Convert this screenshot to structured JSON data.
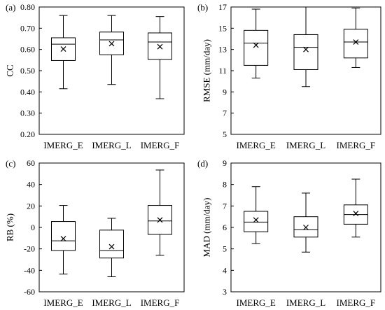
{
  "chart_data": [
    {
      "type": "box",
      "panel_label": "(a)",
      "ylabel": "CC",
      "ylim": [
        0.2,
        0.8
      ],
      "yticks": [
        "0.20",
        "0.30",
        "0.40",
        "0.50",
        "0.60",
        "0.70",
        "0.80"
      ],
      "ytick_values": [
        0.2,
        0.3,
        0.4,
        0.5,
        0.6,
        0.7,
        0.8
      ],
      "categories": [
        "IMERG_E",
        "IMERG_L",
        "IMERG_F"
      ],
      "boxes": [
        {
          "min": 0.415,
          "q1": 0.548,
          "median": 0.625,
          "q3": 0.655,
          "max": 0.76,
          "mean": 0.602
        },
        {
          "min": 0.435,
          "q1": 0.575,
          "median": 0.645,
          "q3": 0.682,
          "max": 0.76,
          "mean": 0.627
        },
        {
          "min": 0.368,
          "q1": 0.553,
          "median": 0.635,
          "q3": 0.678,
          "max": 0.755,
          "mean": 0.613
        }
      ]
    },
    {
      "type": "box",
      "panel_label": "(b)",
      "ylabel": "RMSE (mm/day)",
      "ylim": [
        5,
        17
      ],
      "yticks": [
        "5",
        "7",
        "9",
        "11",
        "13",
        "15",
        "17"
      ],
      "ytick_values": [
        5,
        7,
        9,
        11,
        13,
        15,
        17
      ],
      "categories": [
        "IMERG_E",
        "IMERG_L",
        "IMERG_F"
      ],
      "boxes": [
        {
          "min": 10.3,
          "q1": 11.5,
          "median": 13.6,
          "q3": 14.8,
          "max": 16.8,
          "mean": 13.4
        },
        {
          "min": 9.5,
          "q1": 11.1,
          "median": 13.2,
          "q3": 14.4,
          "max": 17.0,
          "mean": 13.0
        },
        {
          "min": 11.3,
          "q1": 12.2,
          "median": 13.7,
          "q3": 14.9,
          "max": 16.9,
          "mean": 13.7
        }
      ]
    },
    {
      "type": "box",
      "panel_label": "(c)",
      "ylabel": "RB (%)",
      "ylim": [
        -60,
        60
      ],
      "yticks": [
        "-60",
        "-40",
        "-20",
        "0",
        "20",
        "40",
        "60"
      ],
      "ytick_values": [
        -60,
        -40,
        -20,
        0,
        20,
        40,
        60
      ],
      "categories": [
        "IMERG_E",
        "IMERG_L",
        "IMERG_F"
      ],
      "boxes": [
        {
          "min": -43.5,
          "q1": -21.5,
          "median": -12.5,
          "q3": 5.5,
          "max": 20.5,
          "mean": -10.5
        },
        {
          "min": -46,
          "q1": -28.5,
          "median": -21.5,
          "q3": -2.5,
          "max": 8.5,
          "mean": -18.0
        },
        {
          "min": -26,
          "q1": -6.5,
          "median": 6.0,
          "q3": 20.5,
          "max": 53.5,
          "mean": 7.0
        }
      ]
    },
    {
      "type": "box",
      "panel_label": "(d)",
      "ylabel": "MAD (mm/day)",
      "ylim": [
        3,
        9
      ],
      "yticks": [
        "3",
        "4",
        "5",
        "6",
        "7",
        "8",
        "9"
      ],
      "ytick_values": [
        3,
        4,
        5,
        6,
        7,
        8,
        9
      ],
      "categories": [
        "IMERG_E",
        "IMERG_L",
        "IMERG_F"
      ],
      "boxes": [
        {
          "min": 5.25,
          "q1": 5.8,
          "median": 6.25,
          "q3": 6.75,
          "max": 7.9,
          "mean": 6.35
        },
        {
          "min": 4.85,
          "q1": 5.55,
          "median": 5.9,
          "q3": 6.5,
          "max": 7.6,
          "mean": 6.0
        },
        {
          "min": 5.55,
          "q1": 6.15,
          "median": 6.6,
          "q3": 7.05,
          "max": 8.25,
          "mean": 6.65
        }
      ]
    }
  ]
}
